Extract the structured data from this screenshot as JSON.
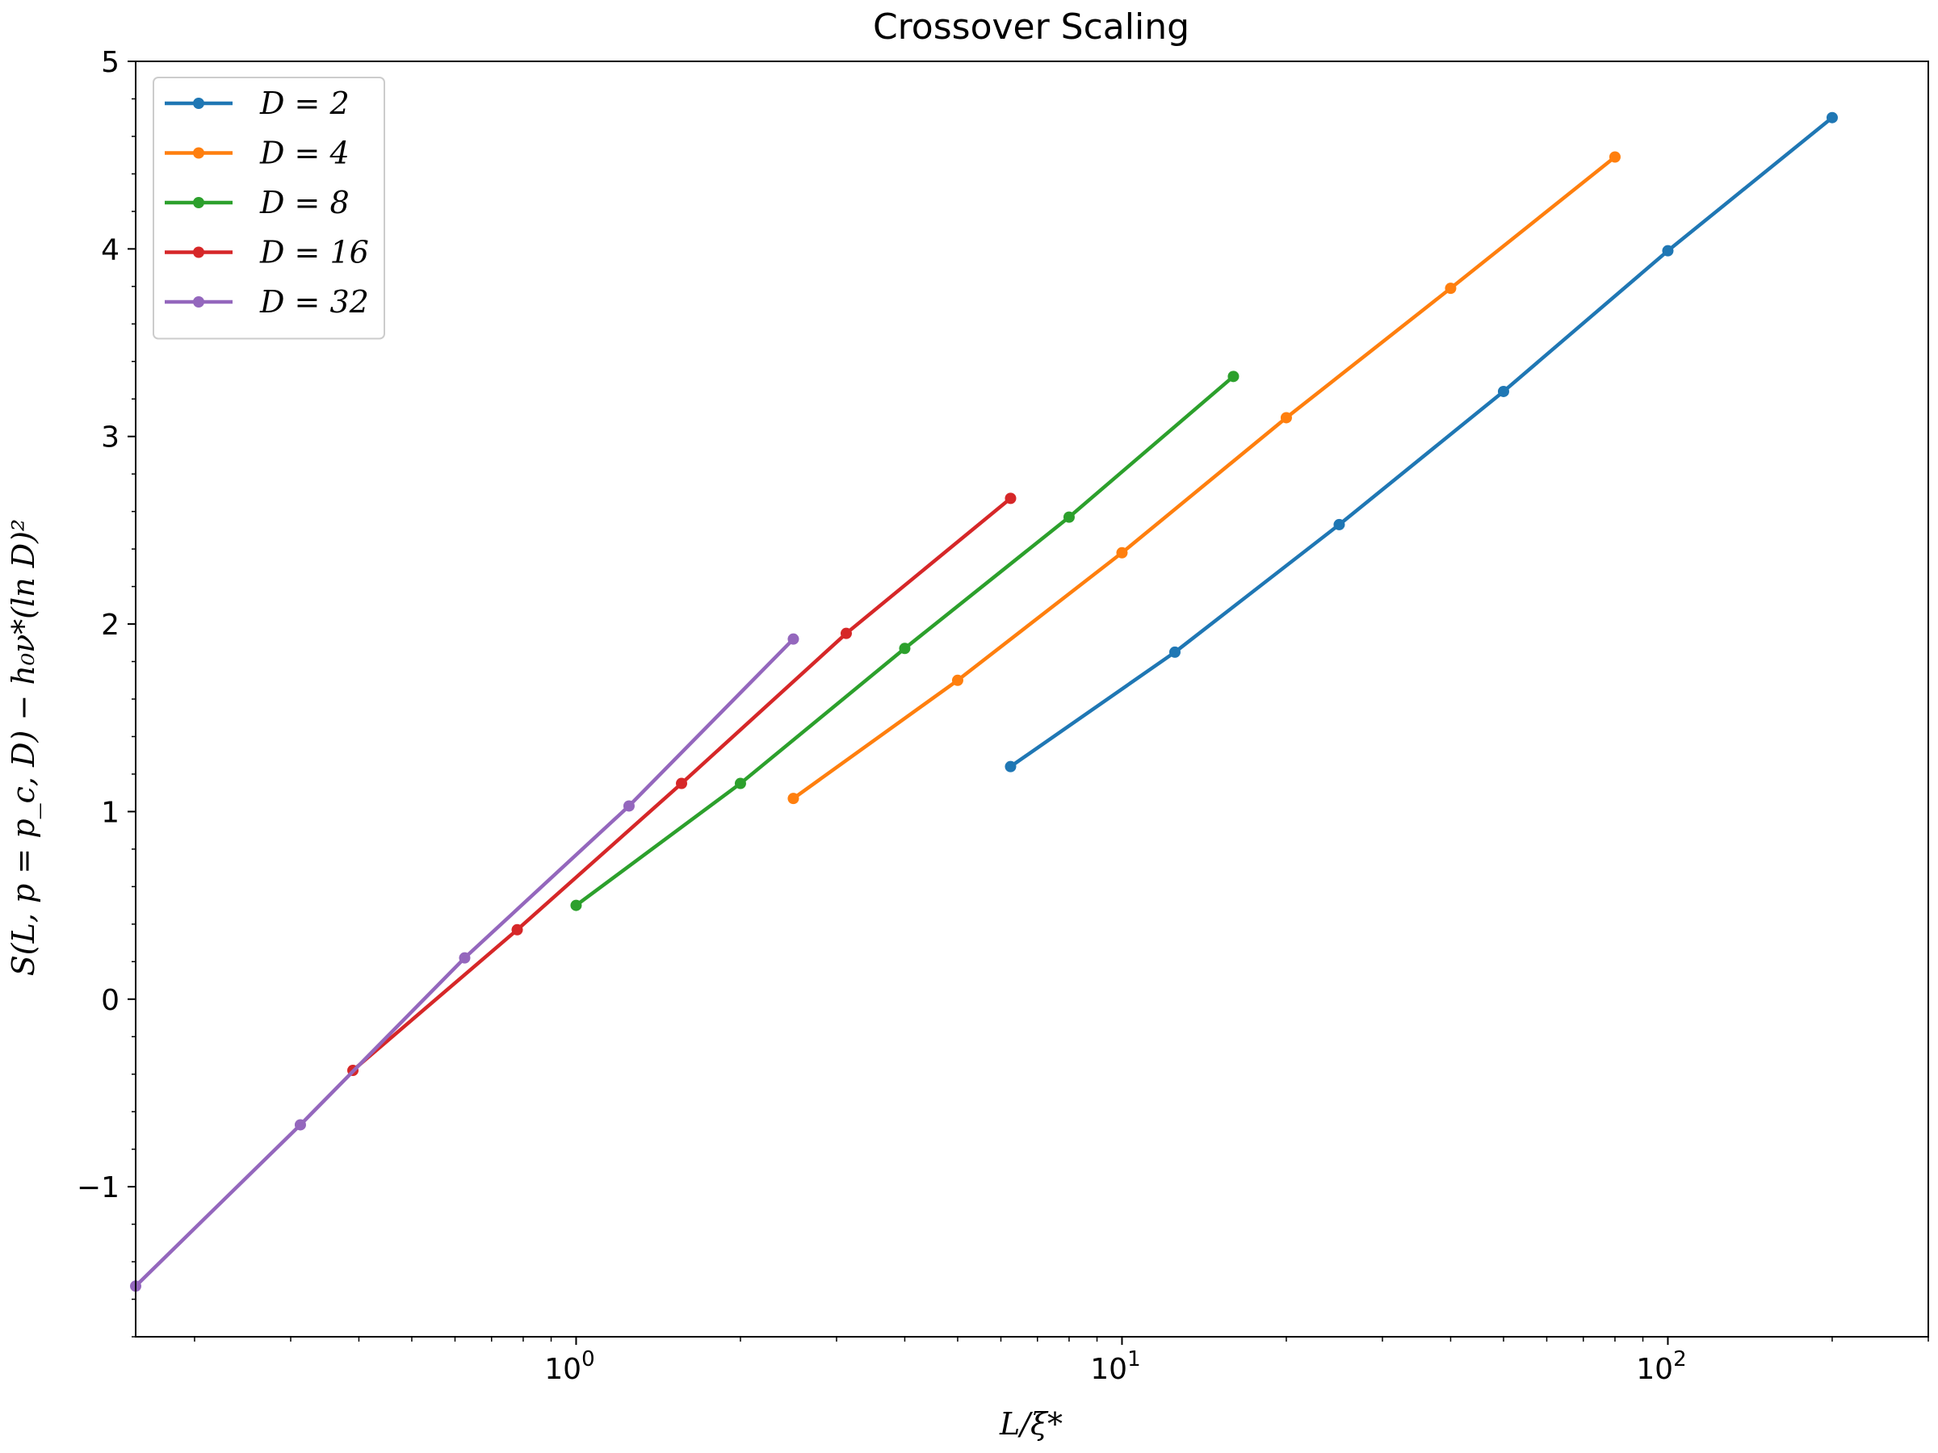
{
  "chart_data": {
    "type": "line",
    "title": "Crossover Scaling",
    "xlabel": "L/ξ*",
    "ylabel": "S(L, p = p_c, D) − h₀ν*(ln D)²",
    "xscale": "log",
    "xlim": [
      0.156,
      300
    ],
    "ylim": [
      -1.8,
      5
    ],
    "x_ticks": [
      {
        "value": 1,
        "base": "10",
        "exp": "0"
      },
      {
        "value": 10,
        "base": "10",
        "exp": "1"
      },
      {
        "value": 100,
        "base": "10",
        "exp": "2"
      }
    ],
    "y_ticks": [
      {
        "value": -1,
        "label": "−1"
      },
      {
        "value": 0,
        "label": "0"
      },
      {
        "value": 1,
        "label": "1"
      },
      {
        "value": 2,
        "label": "2"
      },
      {
        "value": 3,
        "label": "3"
      },
      {
        "value": 4,
        "label": "4"
      },
      {
        "value": 5,
        "label": "5"
      }
    ],
    "grid": false,
    "legend_position": "top-left",
    "series": [
      {
        "name": "D = 2",
        "color": "#1f77b4",
        "x": [
          6.25,
          12.5,
          25,
          50,
          100,
          200
        ],
        "y": [
          1.24,
          1.85,
          2.53,
          3.24,
          3.99,
          4.7
        ]
      },
      {
        "name": "D = 4",
        "color": "#ff7f0e",
        "x": [
          2.5,
          5,
          10,
          20,
          40,
          80
        ],
        "y": [
          1.07,
          1.7,
          2.38,
          3.1,
          3.79,
          4.49
        ]
      },
      {
        "name": "D = 8",
        "color": "#2ca02c",
        "x": [
          1,
          2,
          4,
          8,
          16
        ],
        "y": [
          0.5,
          1.15,
          1.87,
          2.57,
          3.32
        ]
      },
      {
        "name": "D = 16",
        "color": "#d62728",
        "x": [
          0.39,
          0.78,
          1.56,
          3.125,
          6.25
        ],
        "y": [
          -0.38,
          0.37,
          1.15,
          1.95,
          2.67
        ]
      },
      {
        "name": "D = 32",
        "color": "#9467bd",
        "x": [
          0.156,
          0.3125,
          0.625,
          1.25,
          2.5
        ],
        "y": [
          -1.53,
          -0.67,
          0.22,
          1.03,
          1.92
        ]
      }
    ]
  }
}
